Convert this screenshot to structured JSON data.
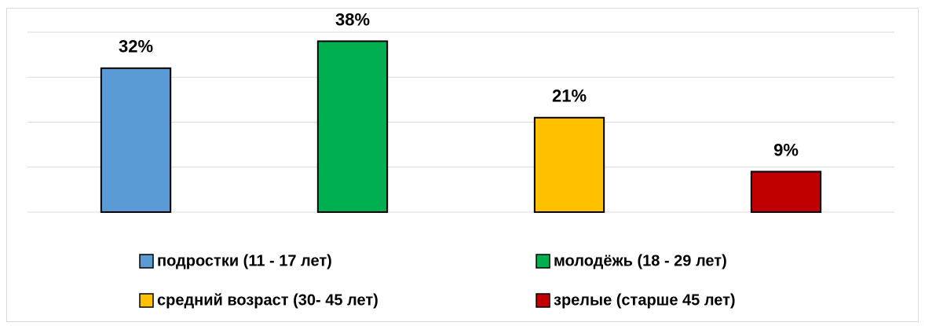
{
  "chart_data": {
    "type": "bar",
    "categories": [
      "подростки (11 - 17 лет)",
      "молодёжь (18 - 29 лет)",
      "средний возраст (30- 45 лет)",
      "зрелые (старше 45 лет)"
    ],
    "values": [
      32,
      38,
      21,
      9
    ],
    "value_labels": [
      "32%",
      "38%",
      "21%",
      "9%"
    ],
    "colors": [
      "#5b9bd5",
      "#00b050",
      "#ffc000",
      "#c00000"
    ],
    "ylim": [
      0,
      40
    ],
    "yticks": [
      0,
      10,
      20,
      30,
      40
    ],
    "grid": true,
    "legend": "bottom"
  }
}
